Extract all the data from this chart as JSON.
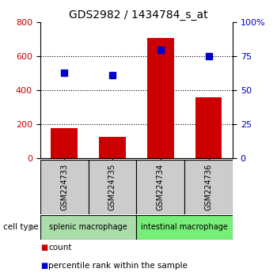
{
  "title": "GDS2982 / 1434784_s_at",
  "samples": [
    "GSM224733",
    "GSM224735",
    "GSM224734",
    "GSM224736"
  ],
  "counts": [
    175,
    125,
    710,
    360
  ],
  "percentiles": [
    63,
    61,
    80,
    75
  ],
  "left_ylim": [
    0,
    800
  ],
  "right_ylim": [
    0,
    100
  ],
  "left_yticks": [
    0,
    200,
    400,
    600,
    800
  ],
  "right_yticks": [
    0,
    25,
    50,
    75,
    100
  ],
  "right_yticklabels": [
    "0",
    "25",
    "50",
    "75",
    "100%"
  ],
  "bar_color": "#cc0000",
  "scatter_color": "#0000cc",
  "groups": [
    {
      "label": "splenic macrophage",
      "indices": [
        0,
        1
      ],
      "color": "#aaddaa"
    },
    {
      "label": "intestinal macrophage",
      "indices": [
        2,
        3
      ],
      "color": "#77ee77"
    }
  ],
  "cell_type_label": "cell type",
  "legend_bar_label": "count",
  "legend_scatter_label": "percentile rank within the sample",
  "bar_color_legend": "#cc0000",
  "scatter_color_legend": "#0000cc",
  "sample_box_color": "#cccccc",
  "bar_width": 0.55,
  "figsize": [
    3.5,
    3.54
  ],
  "dpi": 100,
  "title_fontsize": 10,
  "tick_fontsize": 8,
  "label_fontsize": 7,
  "legend_fontsize": 7.5
}
